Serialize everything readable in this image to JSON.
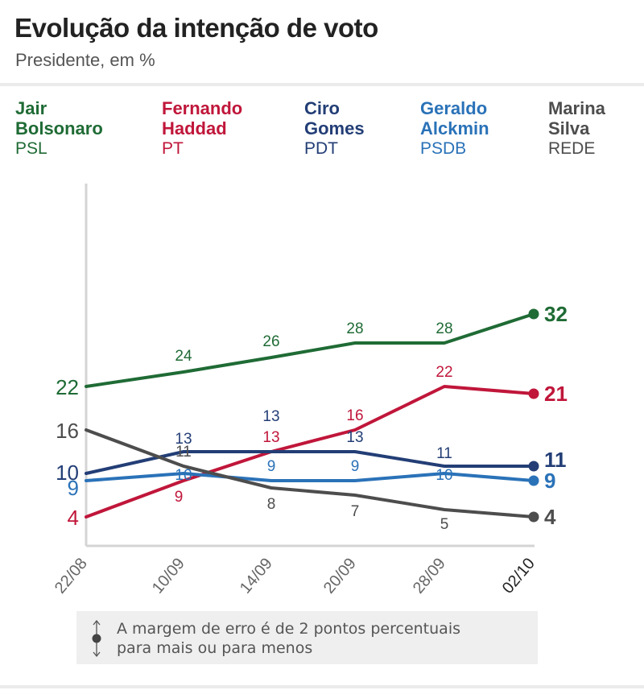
{
  "header": {
    "title": "Evolução da intenção de voto",
    "subtitle": "Presidente, em %"
  },
  "legend": [
    {
      "first": "Jair",
      "last": "Bolsonaro",
      "party": "PSL",
      "color": "#1f6b35"
    },
    {
      "first": "Fernando",
      "last": "Haddad",
      "party": "PT",
      "color": "#c0163a"
    },
    {
      "first": "Ciro",
      "last": "Gomes",
      "party": "PDT",
      "color": "#233e76"
    },
    {
      "first": "Geraldo",
      "last": "Alckmin",
      "party": "PSDB",
      "color": "#2a72b8"
    },
    {
      "first": "Marina",
      "last": "Silva",
      "party": "REDE",
      "color": "#4d4d4d"
    }
  ],
  "note": {
    "line1": "A margem de erro é de 2 pontos percentuais",
    "line2": "para mais ou para menos",
    "icon": "error-margin-icon"
  },
  "chart_data": {
    "type": "line",
    "title": "Evolução da intenção de voto",
    "subtitle": "Presidente, em %",
    "xlabel": "",
    "ylabel": "",
    "x": [
      "22/08",
      "10/09",
      "14/09",
      "20/09",
      "28/09",
      "02/10"
    ],
    "ylim": [
      0,
      50
    ],
    "grid": false,
    "legend_placement": "top",
    "series": [
      {
        "name": "Jair Bolsonaro",
        "party": "PSL",
        "color": "#1f6b35",
        "values": [
          22,
          24,
          26,
          28,
          28,
          32
        ]
      },
      {
        "name": "Fernando Haddad",
        "party": "PT",
        "color": "#c0163a",
        "values": [
          4,
          9,
          13,
          16,
          22,
          21
        ]
      },
      {
        "name": "Ciro Gomes",
        "party": "PDT",
        "color": "#233e76",
        "values": [
          10,
          13,
          13,
          13,
          11,
          11
        ]
      },
      {
        "name": "Geraldo Alckmin",
        "party": "PSDB",
        "color": "#2a72b8",
        "values": [
          9,
          10,
          9,
          9,
          10,
          9
        ]
      },
      {
        "name": "Marina Silva",
        "party": "REDE",
        "color": "#4d4d4d",
        "values": [
          16,
          11,
          8,
          7,
          5,
          4
        ]
      }
    ]
  }
}
